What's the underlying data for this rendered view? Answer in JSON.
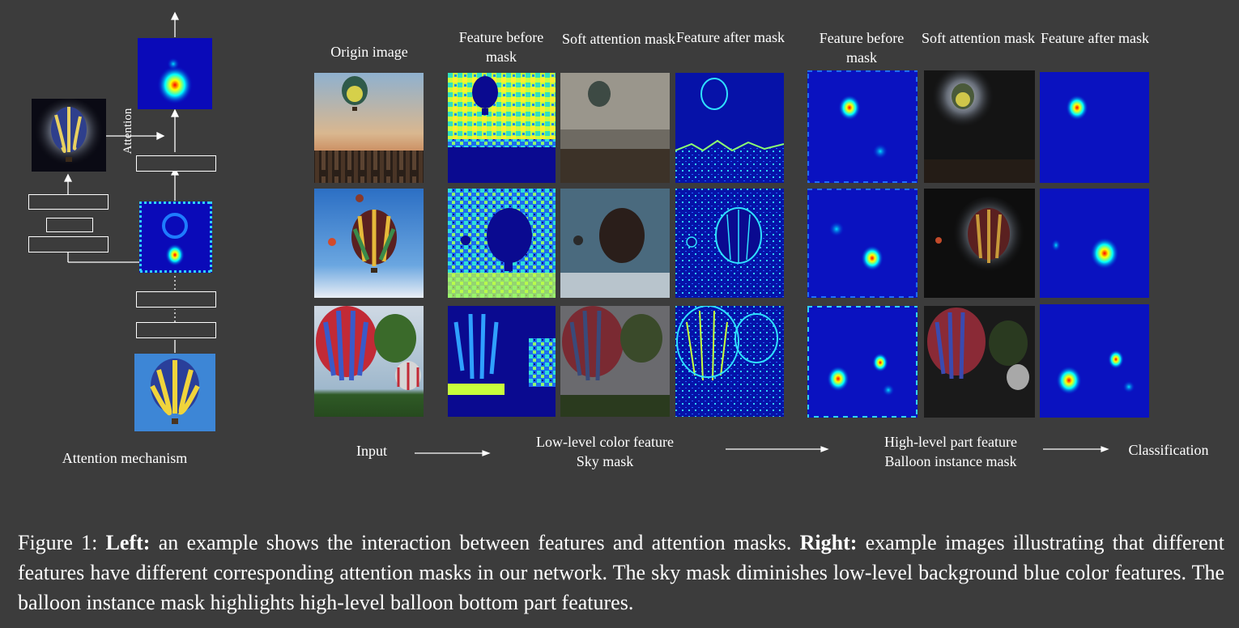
{
  "left_panel": {
    "attention_label": "Attention",
    "title": "Attention mechanism"
  },
  "right_panel": {
    "column_headers": [
      "Origin image",
      "Feature before mask",
      "Soft attention mask",
      "Feature after mask",
      "Feature before mask",
      "Soft attention mask",
      "Feature after mask"
    ],
    "pipeline": {
      "input": "Input",
      "low_level_line1": "Low-level color feature",
      "low_level_line2": "Sky mask",
      "high_level_line1": "High-level part feature",
      "high_level_line2": "Balloon instance mask",
      "output": "Classification"
    }
  },
  "caption": {
    "prefix": "Figure 1: ",
    "left_bold": "Left:",
    "left_text": " an example shows the interaction between features and attention masks. ",
    "right_bold": "Right:",
    "right_text": " example images illustrating that different features have different corresponding attention masks in our network.  The sky mask diminishes low-level background blue color features. The balloon instance mask highlights high-level balloon bottom part features."
  }
}
